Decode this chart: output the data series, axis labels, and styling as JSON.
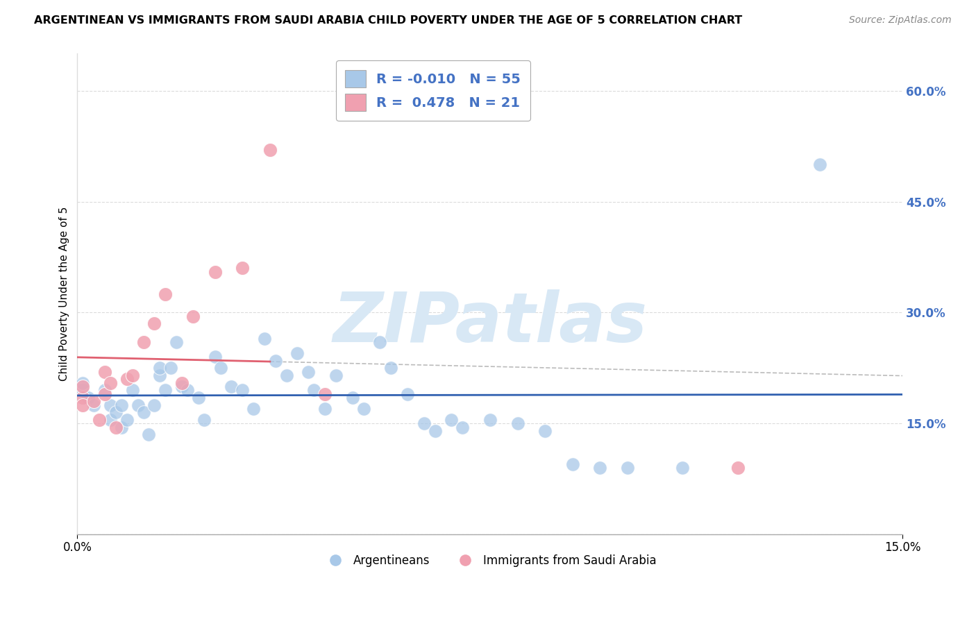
{
  "title": "ARGENTINEAN VS IMMIGRANTS FROM SAUDI ARABIA CHILD POVERTY UNDER THE AGE OF 5 CORRELATION CHART",
  "source": "Source: ZipAtlas.com",
  "ylabel": "Child Poverty Under the Age of 5",
  "xlim": [
    0.0,
    0.15
  ],
  "ylim": [
    0.0,
    0.65
  ],
  "y_ticks": [
    0.0,
    0.15,
    0.3,
    0.45,
    0.6
  ],
  "y_tick_labels": [
    "",
    "15.0%",
    "30.0%",
    "45.0%",
    "60.0%"
  ],
  "x_ticks": [
    0.0,
    0.15
  ],
  "x_tick_labels": [
    "0.0%",
    "15.0%"
  ],
  "legend_R_blue": "-0.010",
  "legend_N_blue": "55",
  "legend_R_pink": "0.478",
  "legend_N_pink": "21",
  "argentineans_x": [
    0.001,
    0.001,
    0.002,
    0.003,
    0.005,
    0.006,
    0.006,
    0.007,
    0.008,
    0.008,
    0.009,
    0.01,
    0.011,
    0.012,
    0.013,
    0.014,
    0.015,
    0.015,
    0.016,
    0.017,
    0.018,
    0.019,
    0.02,
    0.022,
    0.023,
    0.025,
    0.026,
    0.028,
    0.03,
    0.032,
    0.034,
    0.036,
    0.038,
    0.04,
    0.042,
    0.043,
    0.045,
    0.047,
    0.05,
    0.052,
    0.055,
    0.057,
    0.06,
    0.063,
    0.065,
    0.068,
    0.07,
    0.075,
    0.08,
    0.085,
    0.09,
    0.095,
    0.1,
    0.11,
    0.135
  ],
  "argentineans_y": [
    0.195,
    0.205,
    0.185,
    0.175,
    0.195,
    0.175,
    0.155,
    0.165,
    0.175,
    0.145,
    0.155,
    0.195,
    0.175,
    0.165,
    0.135,
    0.175,
    0.215,
    0.225,
    0.195,
    0.225,
    0.26,
    0.2,
    0.195,
    0.185,
    0.155,
    0.24,
    0.225,
    0.2,
    0.195,
    0.17,
    0.265,
    0.235,
    0.215,
    0.245,
    0.22,
    0.195,
    0.17,
    0.215,
    0.185,
    0.17,
    0.26,
    0.225,
    0.19,
    0.15,
    0.14,
    0.155,
    0.145,
    0.155,
    0.15,
    0.14,
    0.095,
    0.09,
    0.09,
    0.09,
    0.5
  ],
  "saudi_x": [
    0.001,
    0.001,
    0.001,
    0.003,
    0.004,
    0.005,
    0.005,
    0.006,
    0.007,
    0.009,
    0.01,
    0.012,
    0.014,
    0.016,
    0.019,
    0.021,
    0.025,
    0.03,
    0.035,
    0.045,
    0.12
  ],
  "saudi_y": [
    0.185,
    0.175,
    0.2,
    0.18,
    0.155,
    0.19,
    0.22,
    0.205,
    0.145,
    0.21,
    0.215,
    0.26,
    0.285,
    0.325,
    0.205,
    0.295,
    0.355,
    0.36,
    0.52,
    0.19,
    0.09
  ],
  "blue_dot_color": "#A8C8E8",
  "pink_dot_color": "#F0A0B0",
  "blue_line_color": "#3060B0",
  "pink_line_color": "#E06070",
  "pink_dash_color": "#E8A0A8",
  "watermark_color": "#D8E8F5",
  "background_color": "#FFFFFF",
  "grid_color": "#CCCCCC",
  "tick_label_color": "#4472C4"
}
